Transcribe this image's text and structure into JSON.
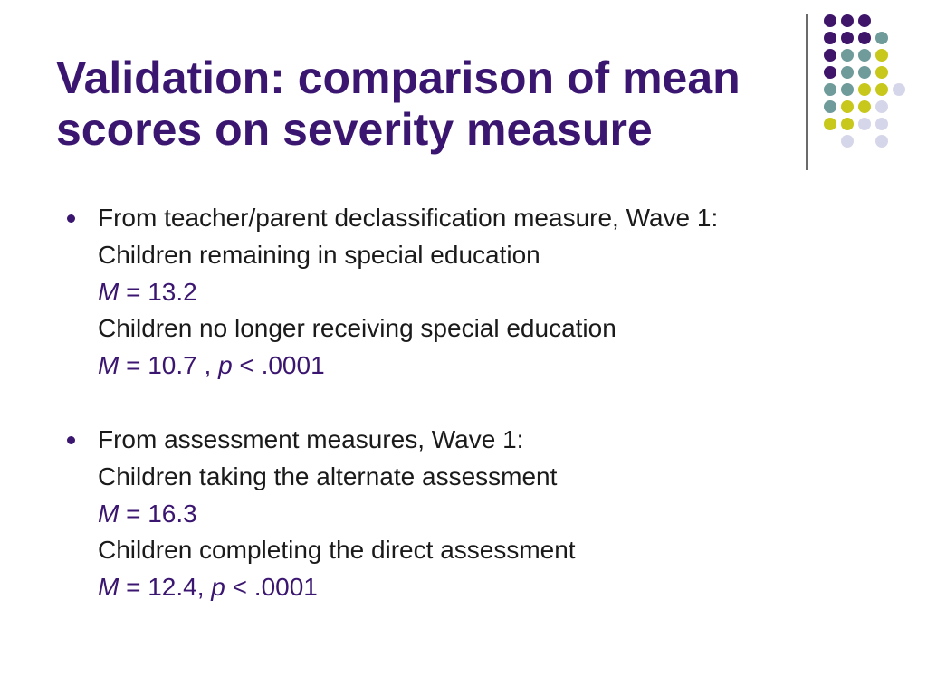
{
  "slide": {
    "title_line1": "Validation: comparison of mean",
    "title_line2": "scores on severity measure",
    "colors": {
      "title": "#3b1670",
      "purple": "#3f1569",
      "teal": "#6f9b9b",
      "yellow": "#c8c81c",
      "lavender": "#d6d6ea"
    }
  },
  "bullets": [
    {
      "heading": "From teacher/parent declassification measure, Wave 1:",
      "group1": "Children remaining in special education",
      "m1_symbol": "M",
      "m1_value": " = 13.2",
      "group2": "Children no longer receiving special education",
      "m2_symbol": "M",
      "m2_value": " = 10.7 , ",
      "p_symbol": "p",
      "p_value": " < .0001"
    },
    {
      "heading": "From assessment measures, Wave 1:",
      "group1": "Children taking the alternate assessment",
      "m1_symbol": "M",
      "m1_value": " = 16.3",
      "group2": "Children completing the direct assessment",
      "m2_symbol": "M",
      "m2_value": " = 12.4, ",
      "p_symbol": "p",
      "p_value": " < .0001"
    }
  ]
}
